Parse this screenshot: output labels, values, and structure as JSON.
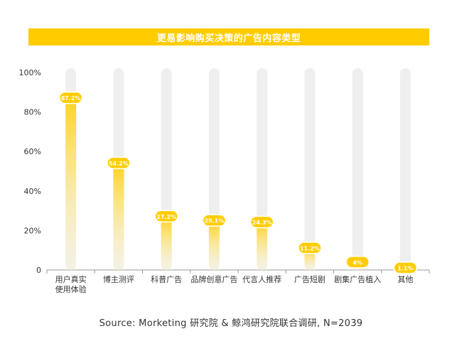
{
  "colors": {
    "accent": "#FFCC00",
    "bar_fill_top": "#FFD21E",
    "bar_track": "#EFEFEF",
    "label_text": "#ffffff",
    "axis_text": "#333333"
  },
  "chart_data": {
    "type": "bar",
    "title": "更易影响购买决策的广告内容类型",
    "categories": [
      [
        "用户真实",
        "使用体验"
      ],
      [
        "博主测评"
      ],
      [
        "科普广告"
      ],
      [
        "品牌创意广告"
      ],
      [
        "代言人推荐"
      ],
      [
        "广告短剧"
      ],
      [
        "剧集广告植入"
      ],
      [
        "其他"
      ]
    ],
    "values": [
      87.2,
      54.2,
      27.2,
      25.1,
      24.3,
      11.2,
      4,
      1.1
    ],
    "value_labels": [
      "87.2%",
      "54.2%",
      "27.2%",
      "25.1%",
      "24.3%",
      "11.2%",
      "4%",
      "1.1%"
    ],
    "yticks": [
      "0",
      "20%",
      "40%",
      "60%",
      "80%",
      "100%"
    ],
    "ylim": [
      0,
      100
    ],
    "xlabel": "",
    "ylabel": "",
    "grid": false,
    "legend": "none"
  },
  "footer": {
    "source": "Source: Morketing 研究院 & 鲸鸿研究院联合调研, N=2039"
  }
}
